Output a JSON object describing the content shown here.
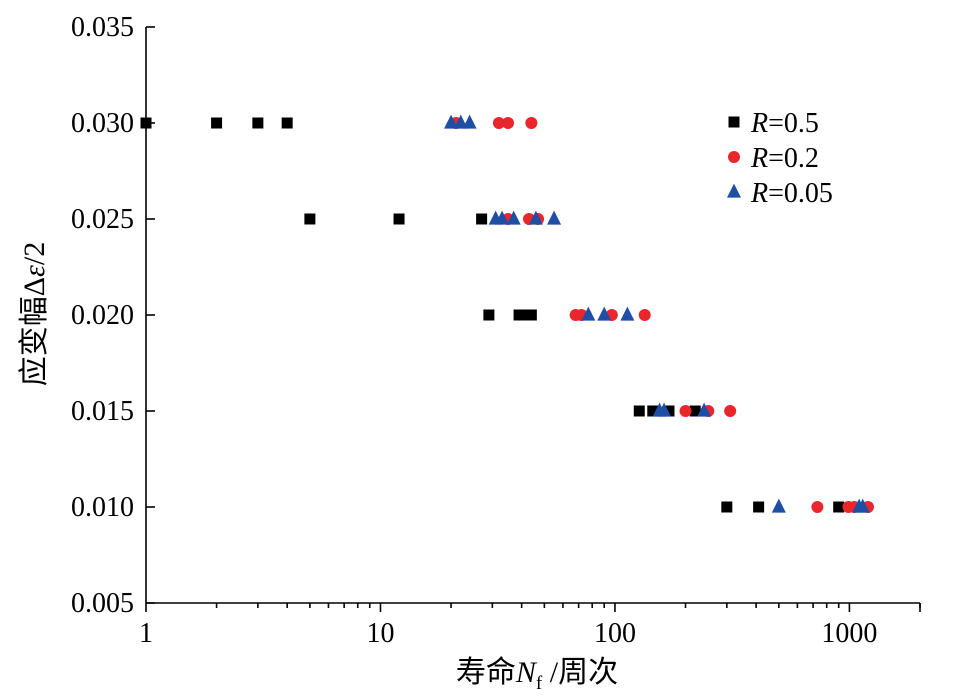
{
  "chart_data": {
    "type": "scatter",
    "x_scale": "log",
    "xlim": [
      1,
      2000
    ],
    "ylim": [
      0.005,
      0.035
    ],
    "x_ticks": [
      1,
      10,
      100,
      1000
    ],
    "x_tick_labels": [
      "1",
      "10",
      "100",
      "1000"
    ],
    "y_ticks": [
      0.005,
      0.01,
      0.015,
      0.02,
      0.025,
      0.03,
      0.035
    ],
    "y_tick_labels": [
      "0.005",
      "0.010",
      "0.015",
      "0.020",
      "0.025",
      "0.030",
      "0.035"
    ],
    "xlabel": {
      "prefix": "寿命",
      "var": "N",
      "sub": "f",
      "suffix": " /周次"
    },
    "ylabel": {
      "prefix": "应变幅",
      "delta": "Δ",
      "var": "ε",
      "suffix": "/2"
    },
    "legend_position": "top-right",
    "grid": false,
    "series": [
      {
        "name": "R=0.5",
        "legend_var": "R",
        "legend_value": "=0.5",
        "marker": "square",
        "color": "#000000",
        "points": [
          [
            1,
            0.03
          ],
          [
            2,
            0.03
          ],
          [
            3,
            0.03
          ],
          [
            4,
            0.03
          ],
          [
            5,
            0.025
          ],
          [
            12,
            0.025
          ],
          [
            27,
            0.025
          ],
          [
            29,
            0.02
          ],
          [
            39,
            0.02
          ],
          [
            42,
            0.02
          ],
          [
            44,
            0.02
          ],
          [
            127,
            0.015
          ],
          [
            145,
            0.015
          ],
          [
            170,
            0.015
          ],
          [
            220,
            0.015
          ],
          [
            300,
            0.01
          ],
          [
            410,
            0.01
          ],
          [
            900,
            0.01
          ]
        ]
      },
      {
        "name": "R=0.2",
        "legend_var": "R",
        "legend_value": "=0.2",
        "marker": "circle",
        "color": "#e8262b",
        "points": [
          [
            21,
            0.03
          ],
          [
            32,
            0.03
          ],
          [
            35,
            0.03
          ],
          [
            44,
            0.03
          ],
          [
            35,
            0.025
          ],
          [
            43,
            0.025
          ],
          [
            47,
            0.025
          ],
          [
            68,
            0.02
          ],
          [
            72,
            0.02
          ],
          [
            97,
            0.02
          ],
          [
            134,
            0.02
          ],
          [
            200,
            0.015
          ],
          [
            250,
            0.015
          ],
          [
            310,
            0.015
          ],
          [
            730,
            0.01
          ],
          [
            990,
            0.01
          ],
          [
            1050,
            0.01
          ],
          [
            1200,
            0.01
          ]
        ]
      },
      {
        "name": "R=0.05",
        "legend_var": "R",
        "legend_value": "=0.05",
        "marker": "triangle",
        "color": "#1f4fa5",
        "points": [
          [
            20,
            0.03
          ],
          [
            22,
            0.03
          ],
          [
            24,
            0.03
          ],
          [
            31,
            0.025
          ],
          [
            33,
            0.025
          ],
          [
            37,
            0.025
          ],
          [
            46,
            0.025
          ],
          [
            55,
            0.025
          ],
          [
            77,
            0.02
          ],
          [
            90,
            0.02
          ],
          [
            113,
            0.02
          ],
          [
            155,
            0.015
          ],
          [
            162,
            0.015
          ],
          [
            240,
            0.015
          ],
          [
            500,
            0.01
          ],
          [
            1100,
            0.01
          ],
          [
            1140,
            0.01
          ]
        ]
      }
    ]
  }
}
